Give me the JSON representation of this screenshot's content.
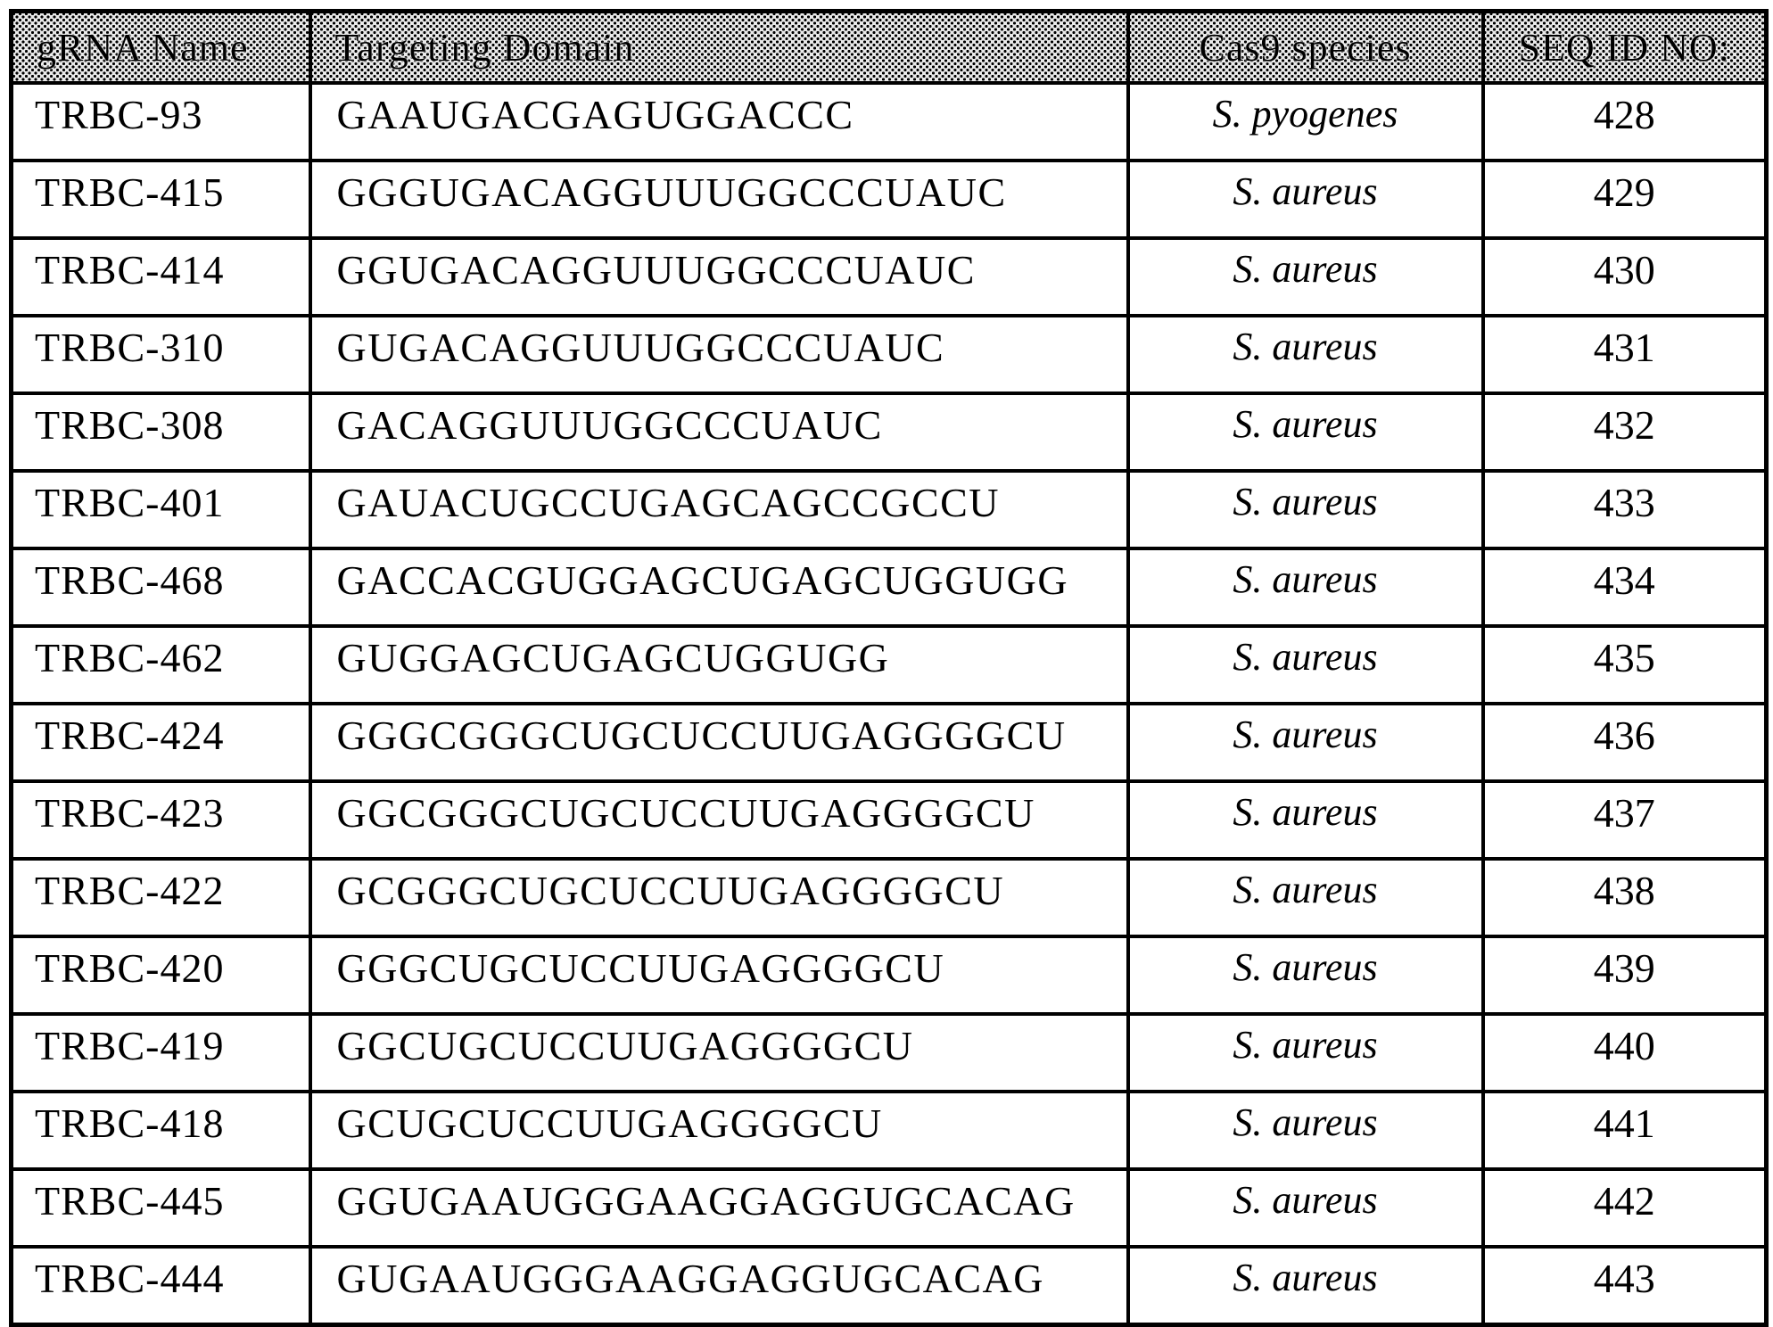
{
  "table": {
    "headers": [
      "gRNA Name",
      "Targeting Domain",
      "Cas9 species",
      "SEQ ID NO:"
    ],
    "rows": [
      {
        "grna_name": "TRBC-93",
        "targeting_domain": "GAAUGACGAGUGGACCC",
        "cas9_species": "S. pyogenes",
        "seq_id": "428"
      },
      {
        "grna_name": "TRBC-415",
        "targeting_domain": "GGGUGACAGGUUUGGCCCUAUC",
        "cas9_species": "S. aureus",
        "seq_id": "429"
      },
      {
        "grna_name": "TRBC-414",
        "targeting_domain": "GGUGACAGGUUUGGCCCUAUC",
        "cas9_species": "S. aureus",
        "seq_id": "430"
      },
      {
        "grna_name": "TRBC-310",
        "targeting_domain": "GUGACAGGUUUGGCCCUAUC",
        "cas9_species": "S. aureus",
        "seq_id": "431"
      },
      {
        "grna_name": "TRBC-308",
        "targeting_domain": "GACAGGUUUGGCCCUAUC",
        "cas9_species": "S. aureus",
        "seq_id": "432"
      },
      {
        "grna_name": "TRBC-401",
        "targeting_domain": "GAUACUGCCUGAGCAGCCGCCU",
        "cas9_species": "S. aureus",
        "seq_id": "433"
      },
      {
        "grna_name": "TRBC-468",
        "targeting_domain": "GACCACGUGGAGCUGAGCUGGUGG",
        "cas9_species": "S. aureus",
        "seq_id": "434"
      },
      {
        "grna_name": "TRBC-462",
        "targeting_domain": "GUGGAGCUGAGCUGGUGG",
        "cas9_species": "S. aureus",
        "seq_id": "435"
      },
      {
        "grna_name": "TRBC-424",
        "targeting_domain": "GGGCGGGCUGCUCCUUGAGGGGCU",
        "cas9_species": "S. aureus",
        "seq_id": "436"
      },
      {
        "grna_name": "TRBC-423",
        "targeting_domain": "GGCGGGCUGCUCCUUGAGGGGCU",
        "cas9_species": "S. aureus",
        "seq_id": "437"
      },
      {
        "grna_name": "TRBC-422",
        "targeting_domain": "GCGGGCUGCUCCUUGAGGGGCU",
        "cas9_species": "S. aureus",
        "seq_id": "438"
      },
      {
        "grna_name": "TRBC-420",
        "targeting_domain": "GGGCUGCUCCUUGAGGGGCU",
        "cas9_species": "S. aureus",
        "seq_id": "439"
      },
      {
        "grna_name": "TRBC-419",
        "targeting_domain": "GGCUGCUCCUUGAGGGGCU",
        "cas9_species": "S. aureus",
        "seq_id": "440"
      },
      {
        "grna_name": "TRBC-418",
        "targeting_domain": "GCUGCUCCUUGAGGGGCU",
        "cas9_species": "S. aureus",
        "seq_id": "441"
      },
      {
        "grna_name": "TRBC-445",
        "targeting_domain": "GGUGAAUGGGAAGGAGGUGCACAG",
        "cas9_species": "S. aureus",
        "seq_id": "442"
      },
      {
        "grna_name": "TRBC-444",
        "targeting_domain": "GUGAAUGGGAAGGAGGUGCACAG",
        "cas9_species": "S. aureus",
        "seq_id": "443"
      }
    ]
  }
}
